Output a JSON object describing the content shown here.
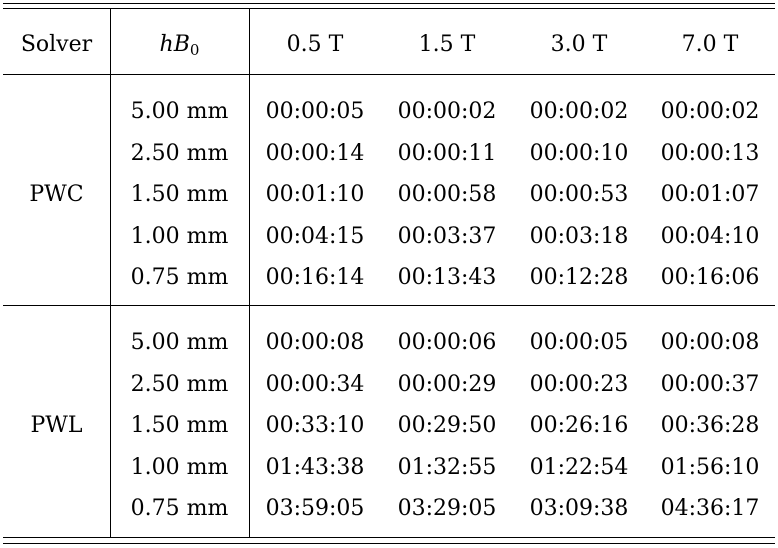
{
  "header": {
    "solver": "Solver",
    "h_symbol": "hB",
    "h_subscript": "0",
    "fields": [
      "0.5 T",
      "1.5 T",
      "3.0 T",
      "7.0 T"
    ]
  },
  "groups": [
    {
      "solver": "PWC",
      "rows": [
        {
          "h": "5.00 mm",
          "times": [
            "00:00:05",
            "00:00:02",
            "00:00:02",
            "00:00:02"
          ]
        },
        {
          "h": "2.50 mm",
          "times": [
            "00:00:14",
            "00:00:11",
            "00:00:10",
            "00:00:13"
          ]
        },
        {
          "h": "1.50 mm",
          "times": [
            "00:01:10",
            "00:00:58",
            "00:00:53",
            "00:01:07"
          ]
        },
        {
          "h": "1.00 mm",
          "times": [
            "00:04:15",
            "00:03:37",
            "00:03:18",
            "00:04:10"
          ]
        },
        {
          "h": "0.75 mm",
          "times": [
            "00:16:14",
            "00:13:43",
            "00:12:28",
            "00:16:06"
          ]
        }
      ]
    },
    {
      "solver": "PWL",
      "rows": [
        {
          "h": "5.00 mm",
          "times": [
            "00:00:08",
            "00:00:06",
            "00:00:05",
            "00:00:08"
          ]
        },
        {
          "h": "2.50 mm",
          "times": [
            "00:00:34",
            "00:00:29",
            "00:00:23",
            "00:00:37"
          ]
        },
        {
          "h": "1.50 mm",
          "times": [
            "00:33:10",
            "00:29:50",
            "00:26:16",
            "00:36:28"
          ]
        },
        {
          "h": "1.00 mm",
          "times": [
            "01:43:38",
            "01:32:55",
            "01:22:54",
            "01:56:10"
          ]
        },
        {
          "h": "0.75 mm",
          "times": [
            "03:59:05",
            "03:29:05",
            "03:09:38",
            "04:36:17"
          ]
        }
      ]
    }
  ]
}
